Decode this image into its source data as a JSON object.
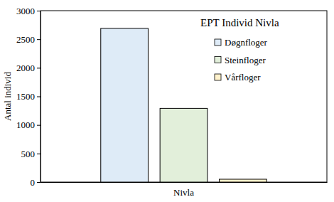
{
  "chart_data": {
    "type": "bar",
    "title": "EPT Individ Nivla",
    "y_label": "Antal individ",
    "categories": [
      "Nivla"
    ],
    "series": [
      {
        "name": "Døgnfloger",
        "color": "#deebf7",
        "values": [
          2690
        ]
      },
      {
        "name": "Steinfloger",
        "color": "#e2efda",
        "values": [
          1290
        ]
      },
      {
        "name": "Vårfloger",
        "color": "#fff2cc",
        "values": [
          50
        ]
      }
    ],
    "ylim": [
      0,
      3000
    ],
    "yticks": [
      0,
      500,
      1000,
      1500,
      2000,
      2500,
      3000
    ],
    "grid": false,
    "legend": "upper right"
  }
}
